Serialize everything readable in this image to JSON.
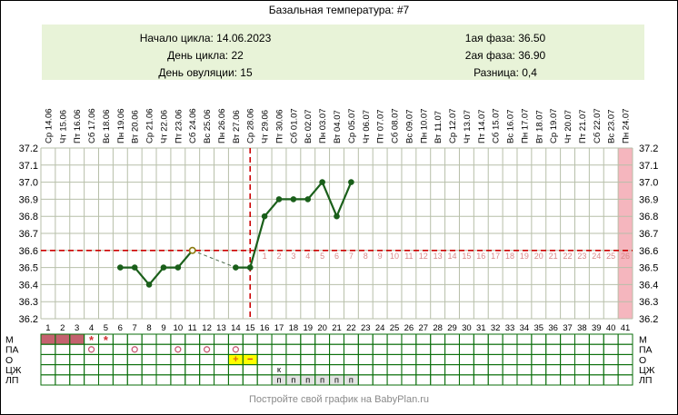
{
  "title": "Базальная температура: #7",
  "info": {
    "left": [
      "Начало цикла: 14.06.2023",
      "День цикла: 22",
      "День овуляции: 15"
    ],
    "right": [
      "1ая фаза: 36.50",
      "2ая фаза: 36.90",
      "Разница: 0,4"
    ]
  },
  "footer": "Постройте свой график на BabyPlan.ru",
  "chart_data": {
    "type": "line",
    "title": "Базальная температура: #7",
    "days": 41,
    "dates": [
      "Ср 14.06",
      "Чт 15.06",
      "Пт 16.06",
      "Сб 17.06",
      "Вс 18.06",
      "Пн 19.06",
      "Вт 20.06",
      "Ср 21.06",
      "Чт 22.06",
      "Пт 23.06",
      "Сб 24.06",
      "Вс 25.06",
      "Пн 26.06",
      "Вт 27.06",
      "Ср 28.06",
      "Чт 29.06",
      "Пт 30.06",
      "Сб 01.07",
      "Вс 02.07",
      "Пн 03.07",
      "Вт 04.07",
      "Ср 05.07",
      "Чт 06.07",
      "Пт 07.07",
      "Сб 08.07",
      "Вс 09.07",
      "Пн 10.07",
      "Вт 11.07",
      "Ср 12.07",
      "Чт 13.07",
      "Пт 14.07",
      "Сб 15.07",
      "Вс 16.07",
      "Пн 17.07",
      "Вт 18.07",
      "Ср 19.07",
      "Чт 20.07",
      "Пт 21.07",
      "Сб 22.07",
      "Вс 23.07",
      "Пн 24.07"
    ],
    "ylim": [
      36.2,
      37.2
    ],
    "ystep": 0.1,
    "coverline": 36.6,
    "ovulation_day": 15,
    "luteal_numbers": {
      "start_day": 16,
      "count": 26
    },
    "pink_column_day": 41,
    "points": [
      {
        "day": 6,
        "temp": 36.5
      },
      {
        "day": 7,
        "temp": 36.5
      },
      {
        "day": 8,
        "temp": 36.4
      },
      {
        "day": 9,
        "temp": 36.5
      },
      {
        "day": 10,
        "temp": 36.5
      },
      {
        "day": 11,
        "temp": 36.6
      },
      {
        "day": 14,
        "temp": 36.5
      },
      {
        "day": 15,
        "temp": 36.5
      },
      {
        "day": 16,
        "temp": 36.8
      },
      {
        "day": 17,
        "temp": 36.9
      },
      {
        "day": 18,
        "temp": 36.9
      },
      {
        "day": 19,
        "temp": 36.9
      },
      {
        "day": 20,
        "temp": 37.0
      },
      {
        "day": 21,
        "temp": 36.8
      },
      {
        "day": 22,
        "temp": 37.0
      }
    ],
    "open_point_days": [
      11
    ]
  },
  "table": {
    "row_labels": [
      "М",
      "ПА",
      "О",
      "ЦЖ",
      "ЛП"
    ],
    "rows": {
      "m": {
        "filled_days": [
          1,
          2,
          3
        ],
        "star_days": [
          4,
          5
        ]
      },
      "pa": {
        "circle_days": [
          4,
          7,
          10,
          12,
          14
        ]
      },
      "o": {
        "cells": [
          {
            "day": 14,
            "text": "+"
          },
          {
            "day": 15,
            "text": "−"
          }
        ]
      },
      "cg": {
        "cells": [
          {
            "day": 17,
            "text": "к"
          }
        ]
      },
      "lp": {
        "cells": [
          {
            "day": 17,
            "text": "п"
          },
          {
            "day": 18,
            "text": "п"
          },
          {
            "day": 19,
            "text": "п"
          },
          {
            "day": 20,
            "text": "п"
          },
          {
            "day": 21,
            "text": "п"
          },
          {
            "day": 22,
            "text": "п"
          }
        ]
      }
    }
  },
  "colors": {
    "accent_red": "#cc0000",
    "line_green": "#1a5f1a",
    "gap_line": "#4c6b4c",
    "open_point_stroke": "#8a7a10",
    "grid": "#b7bfa9",
    "pink_band": "#f5b6be",
    "dpo_text": "#d98a8a",
    "info_bg": "#e8f3d8",
    "mens_fill": "#c4626e",
    "marker_red": "#d03030",
    "pa_ring": "#c85a74",
    "test_bg": "#ffff00",
    "plus_orange": "#e06a10",
    "lp_bg": "#e3e3e3",
    "table_border": "#0a6e0a",
    "footer_gray": "#8a8a8a"
  }
}
